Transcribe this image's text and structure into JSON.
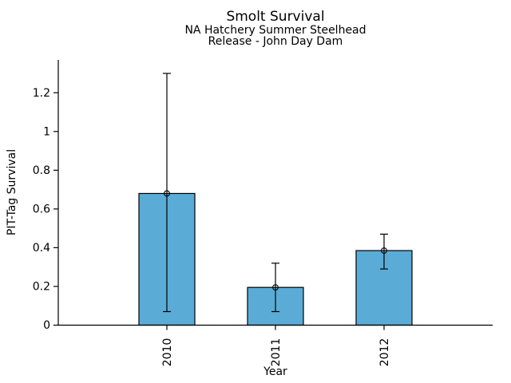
{
  "chart_data": {
    "type": "bar",
    "title": "Smolt Survival",
    "subtitle1": "NA Hatchery Summer Steelhead",
    "subtitle2": "Release - John Day Dam",
    "xlabel": "Year",
    "ylabel": "PIT-Tag Survival",
    "categories": [
      "2010",
      "2011",
      "2012"
    ],
    "values": [
      0.68,
      0.195,
      0.385
    ],
    "error_low": [
      0.07,
      0.07,
      0.29
    ],
    "error_high": [
      1.3,
      0.32,
      0.47
    ],
    "yticks": [
      0,
      0.2,
      0.4,
      0.6,
      0.8,
      1,
      1.2
    ],
    "ylim": [
      0,
      1.37
    ],
    "grid": false,
    "legend": "none",
    "marker": "open-circle",
    "colors": {
      "bar_fill": "#5AACD6",
      "bar_edge": "#000000",
      "error_bar": "#000000",
      "axis": "#000000",
      "text": "#000000",
      "background": "#FFFFFF"
    }
  }
}
